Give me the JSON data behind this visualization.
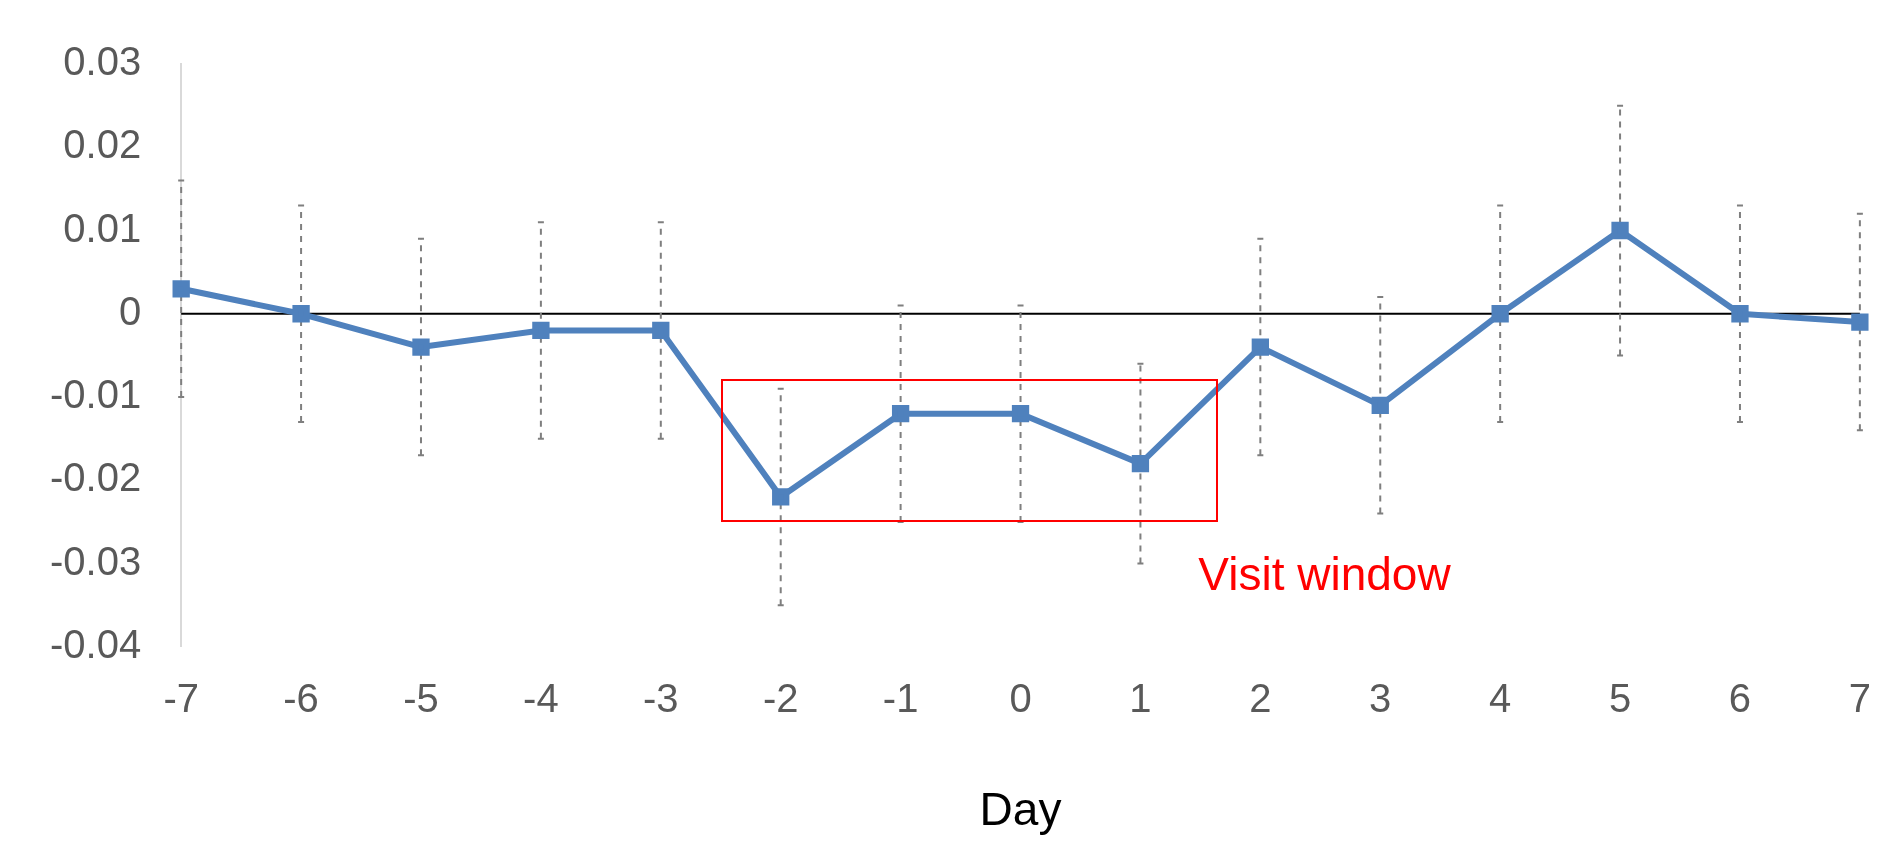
{
  "chart_data": {
    "type": "line",
    "xlabel": "Day",
    "categories": [
      "-7",
      "-6",
      "-5",
      "-4",
      "-3",
      "-2",
      "-1",
      "0",
      "1",
      "2",
      "3",
      "4",
      "5",
      "6",
      "7"
    ],
    "series": [
      {
        "color": "#4f81bd",
        "values": [
          0.003,
          0,
          -0.004,
          -0.002,
          -0.002,
          -0.022,
          -0.012,
          -0.012,
          -0.018,
          -0.004,
          -0.011,
          0,
          0.01,
          0,
          -0.001
        ],
        "errors": [
          0.013,
          0.013,
          0.013,
          0.013,
          0.013,
          0.013,
          0.013,
          0.013,
          0.012,
          0.013,
          0.013,
          0.013,
          0.015,
          0.013,
          0.013
        ]
      }
    ],
    "ylim": [
      -0.04,
      0.03
    ],
    "yticks": [
      -0.04,
      -0.03,
      -0.02,
      -0.01,
      0,
      0.01,
      0.02,
      0.03
    ],
    "ref_lines": [
      {
        "axis": "y",
        "value": 0,
        "color": "#000000"
      }
    ],
    "annotations": [
      "Visit window"
    ],
    "grid": false,
    "legend": false,
    "marker": "square",
    "line_style": "solid"
  }
}
